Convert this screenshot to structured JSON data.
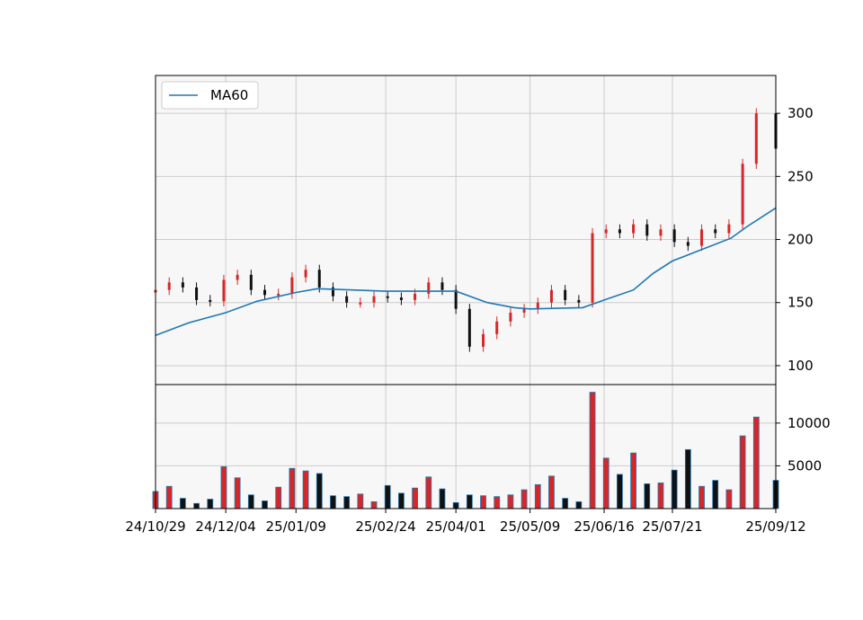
{
  "chart_data": [
    {
      "type": "candlestick",
      "panel": "price",
      "ylim": [
        85,
        330
      ],
      "yticks": [
        "100",
        "150",
        "200",
        "250",
        "300"
      ],
      "xlim": [
        "24/10/29",
        "25/09/12"
      ],
      "xticks": [
        "24/10/29",
        "24/12/04",
        "25/01/09",
        "25/02/24",
        "25/04/01",
        "25/05/09",
        "25/06/16",
        "25/07/21",
        "25/09/12"
      ],
      "grid": true,
      "legend": {
        "position": "top-left",
        "entries": [
          "MA60"
        ]
      },
      "colors": {
        "up": "#d62728",
        "down": "#111111",
        "ma": "#1f77b4",
        "panel_bg": "#f7f7f7",
        "grid": "#cccccc"
      },
      "series": [
        {
          "name": "MA60",
          "x": [
            "24/10/29",
            "24/11/15",
            "24/12/04",
            "24/12/20",
            "25/01/09",
            "25/01/20",
            "25/02/07",
            "25/02/24",
            "25/03/12",
            "25/04/01",
            "25/04/17",
            "25/05/01",
            "25/05/09",
            "25/06/05",
            "25/06/16",
            "25/07/01",
            "25/07/11",
            "25/07/21",
            "25/08/05",
            "25/08/20",
            "25/08/28",
            "25/09/12"
          ],
          "values": [
            124,
            134,
            142,
            151,
            158,
            161,
            160,
            159,
            159,
            159,
            150,
            146,
            145,
            146,
            152,
            160,
            173,
            183,
            192,
            201,
            210,
            225
          ]
        },
        {
          "name": "close",
          "x": [
            "24/10/29",
            "24/11/05",
            "24/11/12",
            "24/11/19",
            "24/11/26",
            "24/12/03",
            "24/12/10",
            "24/12/17",
            "24/12/24",
            "24/12/31",
            "25/01/07",
            "25/01/14",
            "25/01/21",
            "25/01/28",
            "25/02/04",
            "25/02/11",
            "25/02/18",
            "25/02/25",
            "25/03/04",
            "25/03/11",
            "25/03/18",
            "25/03/25",
            "25/04/01",
            "25/04/08",
            "25/04/15",
            "25/04/22",
            "25/04/29",
            "25/05/06",
            "25/05/13",
            "25/05/20",
            "25/05/27",
            "25/06/03",
            "25/06/10",
            "25/06/17",
            "25/06/24",
            "25/07/01",
            "25/07/08",
            "25/07/15",
            "25/07/22",
            "25/07/29",
            "25/08/05",
            "25/08/12",
            "25/08/19",
            "25/08/26",
            "25/09/02",
            "25/09/12"
          ],
          "values": [
            160,
            166,
            162,
            152,
            151,
            168,
            172,
            160,
            156,
            157,
            170,
            176,
            162,
            155,
            150,
            150,
            155,
            154,
            152,
            157,
            166,
            160,
            145,
            115,
            125,
            135,
            142,
            145,
            150,
            160,
            152,
            150,
            205,
            208,
            205,
            212,
            203,
            208,
            198,
            195,
            208,
            205,
            212,
            260,
            300,
            272
          ]
        }
      ]
    },
    {
      "type": "bar",
      "panel": "volume",
      "ylim": [
        0,
        14500
      ],
      "yticks": [
        "5000",
        "10000"
      ],
      "grid": true,
      "colors": {
        "up": "#d62728",
        "down": "#111111",
        "edge": "#1f77b4"
      },
      "x": [
        "24/10/29",
        "24/11/05",
        "24/11/12",
        "24/11/19",
        "24/11/26",
        "24/12/03",
        "24/12/10",
        "24/12/17",
        "24/12/24",
        "24/12/31",
        "25/01/07",
        "25/01/14",
        "25/01/21",
        "25/01/28",
        "25/02/04",
        "25/02/11",
        "25/02/18",
        "25/02/25",
        "25/03/04",
        "25/03/11",
        "25/03/18",
        "25/03/25",
        "25/04/01",
        "25/04/08",
        "25/04/15",
        "25/04/22",
        "25/04/29",
        "25/05/06",
        "25/05/13",
        "25/05/20",
        "25/05/27",
        "25/06/03",
        "25/06/10",
        "25/06/17",
        "25/06/24",
        "25/07/01",
        "25/07/08",
        "25/07/15",
        "25/07/22",
        "25/07/29",
        "25/08/05",
        "25/08/12",
        "25/08/19",
        "25/08/26",
        "25/09/02",
        "25/09/12"
      ],
      "values": [
        2000,
        2600,
        1200,
        600,
        1100,
        4900,
        3600,
        1600,
        900,
        2500,
        4700,
        4400,
        4100,
        1500,
        1400,
        1700,
        800,
        2700,
        1800,
        2400,
        3700,
        2300,
        700,
        1600,
        1500,
        1400,
        1600,
        2200,
        2800,
        3800,
        1200,
        800,
        13600,
        5900,
        4000,
        6500,
        2900,
        3000,
        4500,
        6900,
        2600,
        3300,
        2200,
        8500,
        10700,
        3300
      ]
    }
  ]
}
